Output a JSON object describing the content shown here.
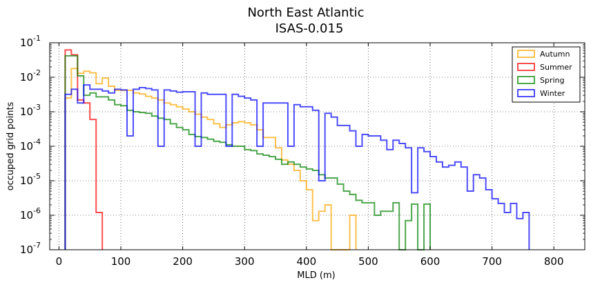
{
  "chart_data": {
    "type": "histogram",
    "title": "North East Atlantic",
    "subtitle": "ISAS-0.015",
    "xlabel": "MLD (m)",
    "ylabel": "occuped grid points",
    "xlim": [
      -15,
      850
    ],
    "ylim_exponent": [
      -7,
      -1
    ],
    "yscale": "log",
    "x_ticks": [
      "0",
      "100",
      "200",
      "300",
      "400",
      "500",
      "600",
      "700",
      "800"
    ],
    "x_tick_values": [
      0,
      100,
      200,
      300,
      400,
      500,
      600,
      700,
      800
    ],
    "y_ticks": [
      {
        "base": "10",
        "exp": "-7"
      },
      {
        "base": "10",
        "exp": "-6"
      },
      {
        "base": "10",
        "exp": "-5"
      },
      {
        "base": "10",
        "exp": "-4"
      },
      {
        "base": "10",
        "exp": "-3"
      },
      {
        "base": "10",
        "exp": "-2"
      },
      {
        "base": "10",
        "exp": "-1"
      }
    ],
    "grid": true,
    "legend_position": "top-right",
    "series": [
      {
        "name": "Autumn",
        "color": "#ffa500",
        "bins": [
          [
            10,
            20,
            0.0025
          ],
          [
            20,
            30,
            0.018
          ],
          [
            30,
            40,
            0.013
          ],
          [
            40,
            50,
            0.015
          ],
          [
            50,
            60,
            0.0135
          ],
          [
            60,
            70,
            0.0065
          ],
          [
            70,
            80,
            0.0095
          ],
          [
            80,
            90,
            0.0055
          ],
          [
            90,
            100,
            0.0042
          ],
          [
            100,
            110,
            0.0042
          ],
          [
            110,
            120,
            0.0042
          ],
          [
            120,
            130,
            0.0035
          ],
          [
            130,
            140,
            0.0033
          ],
          [
            140,
            150,
            0.0028
          ],
          [
            150,
            160,
            0.0025
          ],
          [
            160,
            170,
            0.0022
          ],
          [
            170,
            180,
            0.0018
          ],
          [
            180,
            190,
            0.0016
          ],
          [
            190,
            200,
            0.0014
          ],
          [
            200,
            210,
            0.0012
          ],
          [
            210,
            220,
            0.001
          ],
          [
            220,
            230,
            0.00085
          ],
          [
            230,
            240,
            0.0007
          ],
          [
            240,
            250,
            0.0006
          ],
          [
            250,
            260,
            0.00045
          ],
          [
            260,
            270,
            0.00035
          ],
          [
            270,
            280,
            0.00042
          ],
          [
            280,
            290,
            0.00048
          ],
          [
            290,
            300,
            0.00052
          ],
          [
            300,
            310,
            0.00048
          ],
          [
            310,
            320,
            0.00042
          ],
          [
            320,
            330,
            0.0003
          ],
          [
            330,
            340,
            0.00018
          ],
          [
            340,
            350,
            0.00018
          ],
          [
            350,
            360,
            9e-05
          ],
          [
            360,
            370,
            4e-05
          ],
          [
            370,
            380,
            3e-05
          ],
          [
            380,
            390,
            2e-05
          ],
          [
            390,
            400,
            1e-05
          ],
          [
            400,
            410,
            5.5e-06
          ],
          [
            410,
            420,
            7e-07
          ],
          [
            420,
            430,
            1.3e-06
          ],
          [
            430,
            440,
            2e-06
          ],
          [
            440,
            450,
            1e-07
          ],
          [
            450,
            460,
            1e-07
          ],
          [
            460,
            470,
            1e-07
          ],
          [
            470,
            480,
            1e-06
          ]
        ]
      },
      {
        "name": "Summer",
        "color": "#ff0000",
        "bins": [
          [
            10,
            20,
            0.062
          ],
          [
            20,
            30,
            0.045
          ],
          [
            30,
            40,
            0.0022
          ],
          [
            40,
            50,
            0.0018
          ],
          [
            50,
            60,
            0.0006
          ],
          [
            60,
            70,
            1.2e-06
          ]
        ]
      },
      {
        "name": "Spring",
        "color": "#008000",
        "bins": [
          [
            10,
            20,
            0.042
          ],
          [
            20,
            30,
            0.042
          ],
          [
            30,
            40,
            0.011
          ],
          [
            40,
            50,
            0.003
          ],
          [
            50,
            60,
            0.0035
          ],
          [
            60,
            70,
            0.0027
          ],
          [
            70,
            80,
            0.0027
          ],
          [
            80,
            90,
            0.0022
          ],
          [
            90,
            100,
            0.0016
          ],
          [
            100,
            110,
            0.0015
          ],
          [
            110,
            120,
            0.0011
          ],
          [
            120,
            130,
            0.001
          ],
          [
            130,
            140,
            0.00095
          ],
          [
            140,
            150,
            0.0009
          ],
          [
            150,
            160,
            0.00075
          ],
          [
            160,
            170,
            0.00065
          ],
          [
            170,
            180,
            0.0006
          ],
          [
            180,
            190,
            0.00045
          ],
          [
            190,
            200,
            0.00035
          ],
          [
            200,
            210,
            0.0003
          ],
          [
            210,
            220,
            0.00022
          ],
          [
            220,
            230,
            0.00019
          ],
          [
            230,
            240,
            0.00018
          ],
          [
            240,
            250,
            0.00016
          ],
          [
            250,
            260,
            0.00014
          ],
          [
            260,
            270,
            0.00013
          ],
          [
            270,
            280,
            0.00011
          ],
          [
            280,
            290,
            0.0001
          ],
          [
            290,
            300,
            0.0001
          ],
          [
            300,
            310,
            8e-05
          ],
          [
            310,
            320,
            7.5e-05
          ],
          [
            320,
            330,
            6e-05
          ],
          [
            330,
            340,
            5.5e-05
          ],
          [
            340,
            350,
            5e-05
          ],
          [
            350,
            360,
            4.2e-05
          ],
          [
            360,
            370,
            3e-05
          ],
          [
            370,
            380,
            3.5e-05
          ],
          [
            380,
            390,
            3e-05
          ],
          [
            390,
            400,
            2.5e-05
          ],
          [
            400,
            410,
            2.2e-05
          ],
          [
            410,
            420,
            2e-05
          ],
          [
            420,
            430,
            1.5e-05
          ],
          [
            430,
            440,
            1.2e-05
          ],
          [
            440,
            450,
            1.2e-05
          ],
          [
            450,
            460,
            8e-06
          ],
          [
            460,
            470,
            5e-06
          ],
          [
            470,
            480,
            4e-06
          ],
          [
            480,
            490,
            2.7e-06
          ],
          [
            490,
            500,
            2.3e-06
          ],
          [
            500,
            510,
            2.3e-06
          ],
          [
            510,
            520,
            1e-06
          ],
          [
            520,
            530,
            1.3e-06
          ],
          [
            530,
            540,
            1.3e-06
          ],
          [
            540,
            550,
            2.3e-06
          ],
          [
            550,
            560,
            1e-07
          ],
          [
            560,
            570,
            7e-07
          ],
          [
            570,
            580,
            2.1e-06
          ],
          [
            580,
            590,
            1e-07
          ],
          [
            590,
            600,
            2.1e-06
          ]
        ]
      },
      {
        "name": "Winter",
        "color": "#0000ff",
        "bins": [
          [
            10,
            20,
            0.0032
          ],
          [
            20,
            30,
            0.0045
          ],
          [
            30,
            40,
            0.0018
          ],
          [
            40,
            50,
            0.006
          ],
          [
            50,
            60,
            0.0045
          ],
          [
            60,
            70,
            0.0045
          ],
          [
            70,
            80,
            0.004
          ],
          [
            80,
            90,
            0.0035
          ],
          [
            90,
            100,
            0.0045
          ],
          [
            100,
            110,
            0.0043
          ],
          [
            110,
            120,
            0.0002
          ],
          [
            120,
            130,
            0.0045
          ],
          [
            130,
            140,
            0.005
          ],
          [
            140,
            150,
            0.0047
          ],
          [
            150,
            160,
            0.0043
          ],
          [
            160,
            170,
            0.0001
          ],
          [
            170,
            180,
            0.0043
          ],
          [
            180,
            190,
            0.004
          ],
          [
            190,
            200,
            0.0037
          ],
          [
            200,
            210,
            0.0038
          ],
          [
            210,
            220,
            0.0038
          ],
          [
            220,
            230,
            0.0001
          ],
          [
            230,
            240,
            0.0035
          ],
          [
            240,
            250,
            0.0032
          ],
          [
            250,
            260,
            0.0032
          ],
          [
            260,
            270,
            0.0032
          ],
          [
            270,
            280,
            0.0001
          ],
          [
            280,
            290,
            0.0032
          ],
          [
            290,
            300,
            0.0028
          ],
          [
            300,
            310,
            0.0025
          ],
          [
            310,
            320,
            0.0022
          ],
          [
            320,
            330,
            0.0001
          ],
          [
            330,
            340,
            0.0018
          ],
          [
            340,
            350,
            0.0018
          ],
          [
            350,
            360,
            0.0018
          ],
          [
            360,
            370,
            0.0018
          ],
          [
            370,
            380,
            0.0001
          ],
          [
            380,
            390,
            0.0016
          ],
          [
            390,
            400,
            0.0014
          ],
          [
            400,
            410,
            0.0014
          ],
          [
            410,
            420,
            0.0011
          ],
          [
            420,
            430,
            1e-05
          ],
          [
            430,
            440,
            0.0009
          ],
          [
            440,
            450,
            0.0007
          ],
          [
            450,
            460,
            0.0004
          ],
          [
            460,
            470,
            0.0004
          ],
          [
            470,
            480,
            0.00028
          ],
          [
            480,
            490,
            0.0001
          ],
          [
            490,
            500,
            0.00022
          ],
          [
            500,
            510,
            0.0002
          ],
          [
            510,
            520,
            0.0002
          ],
          [
            520,
            530,
            0.00015
          ],
          [
            530,
            540,
            8e-05
          ],
          [
            540,
            550,
            0.00015
          ],
          [
            550,
            560,
            0.00012
          ],
          [
            560,
            570,
            9e-05
          ],
          [
            570,
            580,
            4.5e-06
          ],
          [
            580,
            590,
            9e-05
          ],
          [
            590,
            600,
            7e-05
          ],
          [
            600,
            610,
            5e-05
          ],
          [
            610,
            620,
            3.5e-05
          ],
          [
            620,
            630,
            2.5e-05
          ],
          [
            630,
            640,
            2.8e-05
          ],
          [
            640,
            650,
            3.5e-05
          ],
          [
            650,
            660,
            2.5e-05
          ],
          [
            660,
            670,
            5e-06
          ],
          [
            670,
            680,
            1.5e-05
          ],
          [
            680,
            690,
            1.2e-05
          ],
          [
            690,
            700,
            5.5e-06
          ],
          [
            700,
            710,
            3e-06
          ],
          [
            710,
            720,
            2.2e-06
          ],
          [
            720,
            730,
            1.2e-06
          ],
          [
            730,
            740,
            2.2e-06
          ],
          [
            740,
            750,
            8e-07
          ],
          [
            750,
            760,
            1.2e-06
          ]
        ]
      }
    ]
  }
}
